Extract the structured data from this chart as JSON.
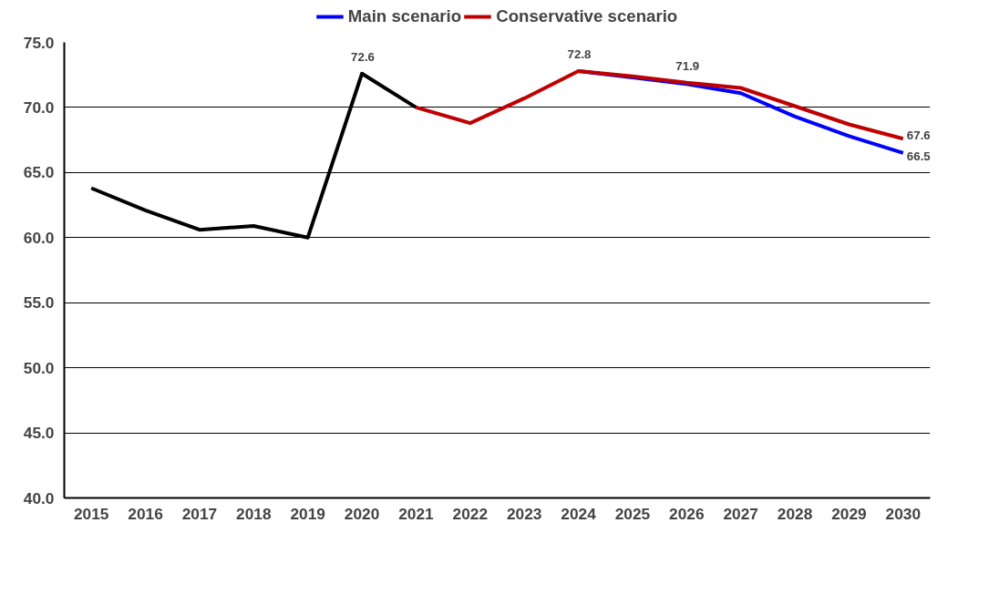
{
  "chart_data": {
    "type": "line",
    "categories": [
      "2015",
      "2016",
      "2017",
      "2018",
      "2019",
      "2020",
      "2021",
      "2022",
      "2023",
      "2024",
      "2025",
      "2026",
      "2027",
      "2028",
      "2029",
      "2030"
    ],
    "series": [
      {
        "color": "#000000",
        "values": [
          63.8,
          62.1,
          60.6,
          60.9,
          60.0,
          72.6,
          70.0,
          null,
          null,
          null,
          null,
          null,
          null,
          null,
          null,
          null
        ],
        "value_labels": [
          null,
          null,
          null,
          null,
          null,
          "72.6",
          null,
          null,
          null,
          null,
          null,
          null,
          null,
          null,
          null,
          null
        ]
      },
      {
        "name": "Main scenario",
        "color": "#0000ff",
        "values": [
          null,
          null,
          null,
          null,
          null,
          null,
          null,
          null,
          null,
          72.8,
          72.3,
          71.8,
          71.1,
          69.3,
          67.8,
          66.5
        ],
        "value_labels": [
          null,
          null,
          null,
          null,
          null,
          null,
          null,
          null,
          null,
          null,
          null,
          null,
          null,
          null,
          null,
          "66.5"
        ]
      },
      {
        "name": "Conservative scenario",
        "color": "#c00000",
        "values": [
          null,
          null,
          null,
          null,
          null,
          null,
          70.0,
          68.8,
          70.7,
          72.8,
          72.4,
          71.9,
          71.5,
          70.1,
          68.7,
          67.6
        ],
        "value_labels": [
          null,
          null,
          null,
          null,
          null,
          null,
          null,
          null,
          null,
          "72.8",
          null,
          "71.9",
          null,
          null,
          null,
          "67.6"
        ]
      }
    ],
    "ylim": [
      40,
      75
    ],
    "yticks": [
      {
        "value": 40,
        "label": "40.0"
      },
      {
        "value": 45,
        "label": "45.0"
      },
      {
        "value": 50,
        "label": "50.0"
      },
      {
        "value": 55,
        "label": "55.0"
      },
      {
        "value": 60,
        "label": "60.0"
      },
      {
        "value": 65,
        "label": "65.0"
      },
      {
        "value": 70,
        "label": "70.0"
      },
      {
        "value": 75,
        "label": "75.0"
      }
    ],
    "grid": "y",
    "legend": "top",
    "marker": "none",
    "line_style": "solid"
  }
}
